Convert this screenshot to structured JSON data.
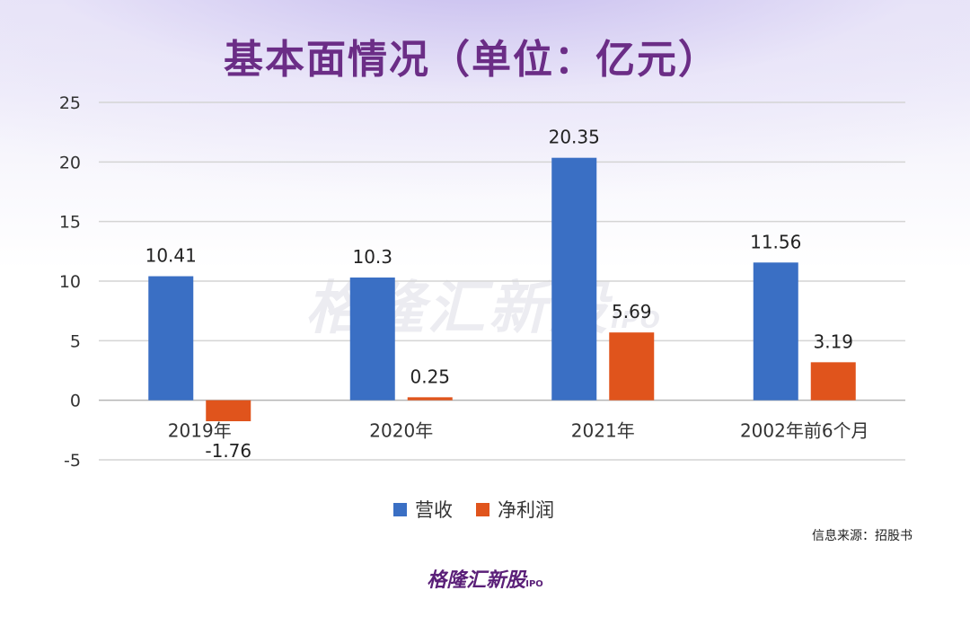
{
  "title": "基本面情况（单位：亿元）",
  "watermark": {
    "brand": "格隆汇新股",
    "suffix": "IPO"
  },
  "source": "信息来源：招股书",
  "logo": {
    "brand": "格隆汇新股",
    "suffix": "IPO"
  },
  "chart_data": {
    "type": "bar",
    "categories": [
      "2019年",
      "2020年",
      "2021年",
      "2002年前6个月"
    ],
    "series": [
      {
        "name": "营收",
        "values": [
          10.41,
          10.3,
          20.35,
          11.56
        ],
        "labels": [
          "10.41",
          "10.3",
          "20.35",
          "11.56"
        ],
        "color": "#3a6fc4"
      },
      {
        "name": "净利润",
        "values": [
          -1.76,
          0.25,
          5.69,
          3.19
        ],
        "labels": [
          "-1.76",
          "0.25",
          "5.69",
          "3.19"
        ],
        "color": "#e0541c"
      }
    ],
    "ylim": [
      -5,
      25
    ],
    "yticks": [
      25,
      20,
      15,
      10,
      5,
      0,
      -5
    ],
    "grid": true,
    "legend": "bottom"
  }
}
